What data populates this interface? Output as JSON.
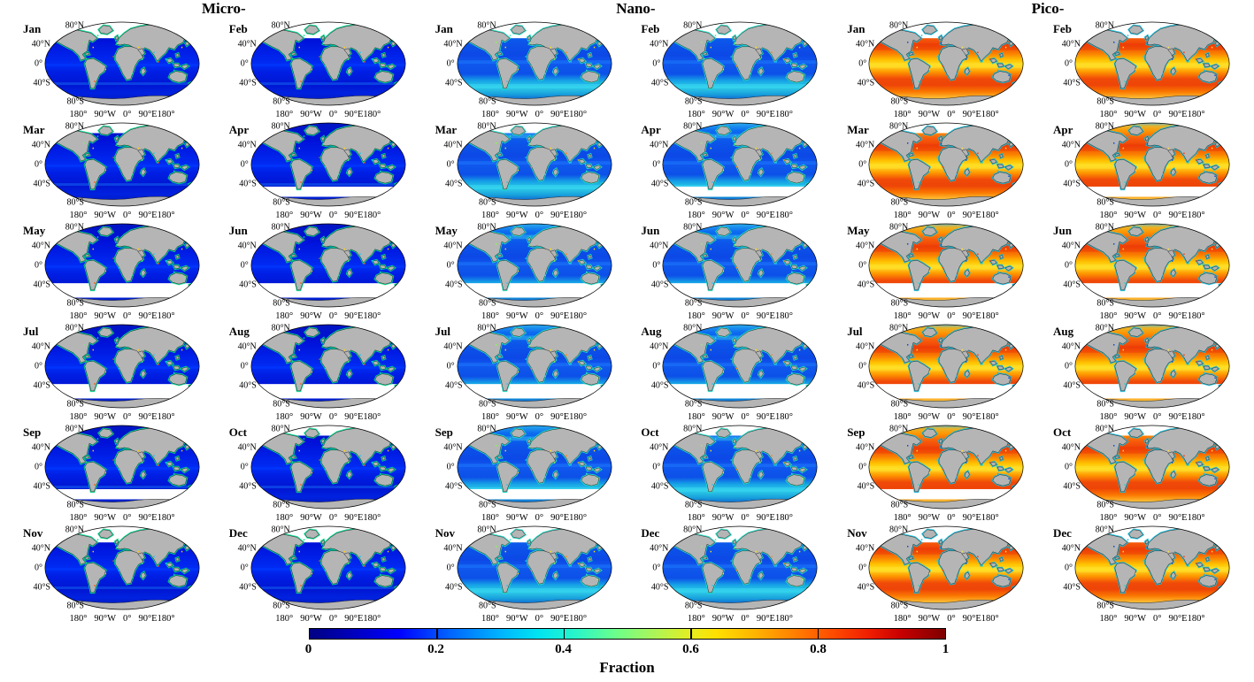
{
  "figure": {
    "background": "#ffffff",
    "groups": [
      {
        "id": "micro",
        "title": "Micro-"
      },
      {
        "id": "nano",
        "title": "Nano-"
      },
      {
        "id": "pico",
        "title": "Pico-"
      }
    ],
    "months": [
      "Jan",
      "Feb",
      "Mar",
      "Apr",
      "May",
      "Jun",
      "Jul",
      "Aug",
      "Sep",
      "Oct",
      "Nov",
      "Dec"
    ],
    "map": {
      "lat_labels": [
        "80°N",
        "40°N",
        "0°",
        "40°S",
        "80°S"
      ],
      "lon_parts": [
        "180°",
        "90°W",
        "0°",
        "90°E180°"
      ]
    },
    "data_gaps": {
      "Jan": {
        "side": "north",
        "extent": "full"
      },
      "Feb": {
        "side": "north",
        "extent": "full"
      },
      "Mar": {
        "side": "north",
        "extent": "small"
      },
      "Apr": {
        "side": "south",
        "extent": "small"
      },
      "May": {
        "side": "south",
        "extent": "full"
      },
      "Jun": {
        "side": "south",
        "extent": "full"
      },
      "Jul": {
        "side": "south",
        "extent": "full"
      },
      "Aug": {
        "side": "south",
        "extent": "full"
      },
      "Sep": {
        "side": "south",
        "extent": "small"
      },
      "Oct": {
        "side": "north",
        "extent": "small"
      },
      "Nov": {
        "side": "north",
        "extent": "full"
      },
      "Dec": {
        "side": "north",
        "extent": "full"
      }
    },
    "palette": {
      "land": "#b5b5b5",
      "coastline": "#1c1c1c",
      "outline": "#000000",
      "missing": "#ffffff",
      "micro": {
        "ocean": [
          [
            0,
            "#0016c0"
          ],
          [
            20,
            "#0010d8"
          ],
          [
            45,
            "#0026ee"
          ],
          [
            52,
            "#002cf4"
          ],
          [
            60,
            "#001ee4"
          ],
          [
            75,
            "#0016d2"
          ],
          [
            85,
            "#0022e0"
          ],
          [
            100,
            "#0016aa"
          ]
        ],
        "halo": "#00dc90",
        "streaks": [
          [
            50,
            3,
            "#0038ff",
            0.6
          ],
          [
            72,
            3,
            "#1464f0",
            0.55
          ]
        ],
        "speckles": [
          "#00e090",
          "#60ff60",
          "#ffd000",
          "#ff5000",
          "#00c8ff"
        ]
      },
      "nano": {
        "ocean": [
          [
            0,
            "#2cb2ea"
          ],
          [
            10,
            "#0c6cf0"
          ],
          [
            25,
            "#0c54ea"
          ],
          [
            40,
            "#0c48e6"
          ],
          [
            50,
            "#1058ee"
          ],
          [
            62,
            "#0c50e8"
          ],
          [
            70,
            "#16a2e6"
          ],
          [
            78,
            "#2ecce8"
          ],
          [
            86,
            "#18a0dc"
          ],
          [
            94,
            "#0c58d0"
          ],
          [
            100,
            "#0c46be"
          ]
        ],
        "halo": "#22e0c8",
        "streaks": [
          [
            14,
            5,
            "#35c0f0",
            0.5
          ],
          [
            46,
            4,
            "#2080ff",
            0.45
          ],
          [
            74,
            5,
            "#38d8f0",
            0.55
          ]
        ],
        "speckles": [
          "#30e8c0",
          "#80ff50",
          "#ffe000",
          "#20c0ff",
          "#ff8000"
        ]
      },
      "pico": {
        "ocean": [
          [
            0,
            "#50b4dc"
          ],
          [
            5,
            "#e8b428"
          ],
          [
            11,
            "#ff9400"
          ],
          [
            19,
            "#f85e0a"
          ],
          [
            28,
            "#ee4008"
          ],
          [
            38,
            "#fa8000"
          ],
          [
            46,
            "#ffc400"
          ],
          [
            52,
            "#ffde30"
          ],
          [
            59,
            "#ff9e00"
          ],
          [
            67,
            "#f25008"
          ],
          [
            75,
            "#ee4408"
          ],
          [
            83,
            "#fa7800"
          ],
          [
            90,
            "#ffba30"
          ],
          [
            95,
            "#5ec0d4"
          ],
          [
            100,
            "#4aaacc"
          ]
        ],
        "halo": "#18c0e0",
        "streaks": [
          [
            26,
            8,
            "#ee3c06",
            0.5
          ],
          [
            49,
            6,
            "#ffe020",
            0.55
          ],
          [
            68,
            8,
            "#ee4408",
            0.45
          ]
        ],
        "speckles": [
          "#20b0e8",
          "#0048e0",
          "#ffe040",
          "#30d0c0",
          "#ff3000"
        ]
      }
    },
    "colorbar": {
      "ticks": [
        "0",
        "0.2",
        "0.4",
        "0.6",
        "0.8",
        "1"
      ],
      "tick_positions": [
        0,
        20,
        40,
        60,
        80,
        100
      ],
      "label": "Fraction",
      "gradient": [
        [
          0,
          "#000082"
        ],
        [
          8,
          "#0000c8"
        ],
        [
          14,
          "#0000ff"
        ],
        [
          22,
          "#0064ff"
        ],
        [
          30,
          "#00b4ff"
        ],
        [
          36,
          "#00e4f0"
        ],
        [
          42,
          "#2af5c8"
        ],
        [
          48,
          "#6aff8c"
        ],
        [
          54,
          "#aaf55a"
        ],
        [
          60,
          "#e6ee20"
        ],
        [
          64,
          "#ffe000"
        ],
        [
          70,
          "#ffb400"
        ],
        [
          76,
          "#ff8200"
        ],
        [
          82,
          "#ff4e00"
        ],
        [
          88,
          "#f01e00"
        ],
        [
          93,
          "#c80000"
        ],
        [
          100,
          "#7d0000"
        ]
      ]
    }
  },
  "chart_data": {
    "type": "heatmap",
    "subtype": "global-map-grid",
    "layout": "6 rows × 6 columns; each pair of columns is one size class, each row is a month pair",
    "groups": [
      "Micro-",
      "Nano-",
      "Pico-"
    ],
    "months": [
      "Jan",
      "Feb",
      "Mar",
      "Apr",
      "May",
      "Jun",
      "Jul",
      "Aug",
      "Sep",
      "Oct",
      "Nov",
      "Dec"
    ],
    "value_label": "Fraction",
    "value_range": [
      0,
      1
    ],
    "colormap": "jet",
    "colorbar_ticks": [
      0,
      0.2,
      0.4,
      0.6,
      0.8,
      1
    ],
    "projection": "robinson-like ellipse",
    "lat_ticks": [
      "80°N",
      "40°N",
      "0°",
      "40°S",
      "80°S"
    ],
    "lon_ticks": [
      "180°",
      "90°W",
      "0°",
      "90°E",
      "180°"
    ],
    "qualitative_reading": {
      "Micro-": "low fraction ~0.05-0.2 (dark blue open ocean, green/yellow coastal patches)",
      "Nano-": "low-mid fraction ~0.15-0.4 (blue with cyan bands at mid/high latitudes and coasts)",
      "Pico-": "high fraction ~0.6-0.9 (orange/red gyres, yellow equatorial band, cyan coastal/upwelling patches)"
    },
    "missing_data": "white polar band in winter hemisphere: Nov-Mar north of ~55°N, Apr-Sep south of ~45°S"
  }
}
